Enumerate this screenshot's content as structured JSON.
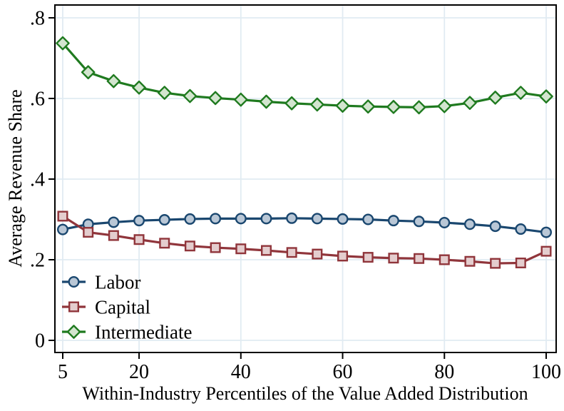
{
  "figure": {
    "background": "#ffffff",
    "grid_color": "#e1ebf2",
    "axis_color": "#000000",
    "text_color": "#000000"
  },
  "chart_data": {
    "type": "line",
    "title": "",
    "xlabel": "Within-Industry Percentiles of the Value Added Distribution",
    "ylabel": "Average Revenue Share",
    "grid": true,
    "legend_position": "inside-lower-left",
    "xlim": [
      3.46,
      101.96
    ],
    "ylim": [
      -0.0301,
      0.8318
    ],
    "x_ticks": [
      5,
      20,
      40,
      60,
      80,
      100
    ],
    "x_tick_labels": [
      "5",
      "20",
      "40",
      "60",
      "80",
      "100"
    ],
    "y_ticks": [
      0,
      0.2,
      0.4,
      0.6,
      0.8
    ],
    "y_tick_labels": [
      "0",
      ".2",
      ".4",
      ".6",
      ".8"
    ],
    "x": [
      5,
      10,
      15,
      20,
      25,
      30,
      35,
      40,
      45,
      50,
      55,
      60,
      65,
      70,
      75,
      80,
      85,
      90,
      95,
      100
    ],
    "series": [
      {
        "name": "Labor",
        "marker": "circle",
        "line_color": "#1a476f",
        "marker_fill": "#b9c7d6",
        "values": [
          0.275,
          0.288,
          0.293,
          0.297,
          0.299,
          0.301,
          0.302,
          0.302,
          0.302,
          0.303,
          0.302,
          0.301,
          0.3,
          0.297,
          0.295,
          0.292,
          0.288,
          0.283,
          0.276,
          0.268
        ]
      },
      {
        "name": "Capital",
        "marker": "square",
        "line_color": "#90353b",
        "marker_fill": "#e4cdce",
        "values": [
          0.308,
          0.268,
          0.26,
          0.25,
          0.241,
          0.234,
          0.23,
          0.227,
          0.223,
          0.218,
          0.214,
          0.209,
          0.206,
          0.204,
          0.203,
          0.2,
          0.196,
          0.191,
          0.192,
          0.221
        ]
      },
      {
        "name": "Intermediate",
        "marker": "diamond",
        "line_color": "#1f7a1f",
        "marker_fill": "#d3e5cf",
        "values": [
          0.737,
          0.665,
          0.643,
          0.627,
          0.614,
          0.606,
          0.601,
          0.597,
          0.592,
          0.588,
          0.585,
          0.582,
          0.58,
          0.579,
          0.578,
          0.581,
          0.589,
          0.602,
          0.614,
          0.605
        ]
      }
    ]
  }
}
